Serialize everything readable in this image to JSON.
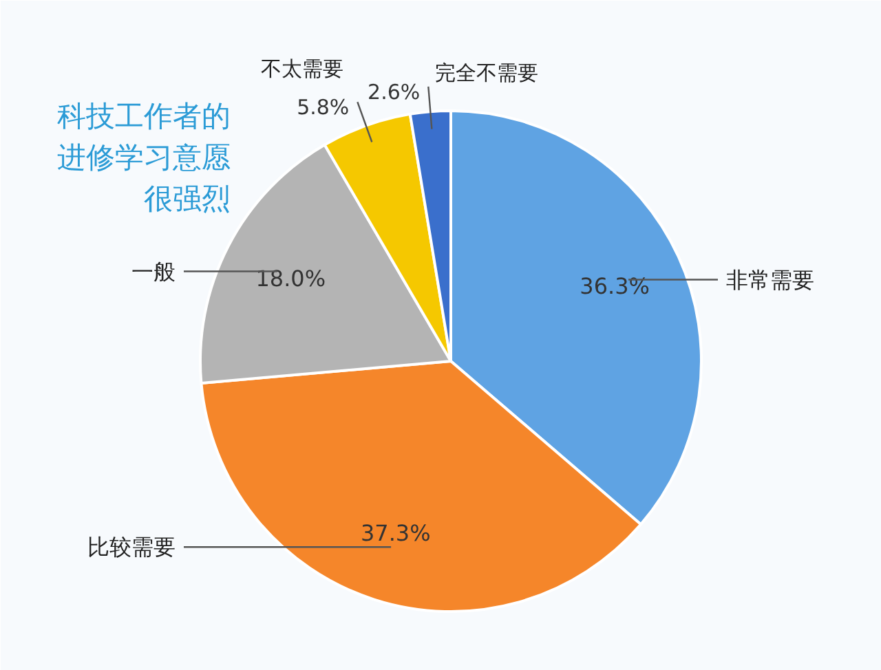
{
  "chart_data": {
    "type": "pie",
    "title": "科技工作者的进修学习意愿很强烈",
    "categories": [
      "非常需要",
      "比较需要",
      "一般",
      "不太需要",
      "完全不需要"
    ],
    "values": [
      36.3,
      37.3,
      18.0,
      5.8,
      2.6
    ],
    "value_labels": [
      "36.3%",
      "37.3%",
      "18.0%",
      "5.8%",
      "2.6%"
    ],
    "colors": [
      "#5fa3e3",
      "#f5862a",
      "#b4b4b4",
      "#f5c800",
      "#3a6fcc"
    ]
  }
}
